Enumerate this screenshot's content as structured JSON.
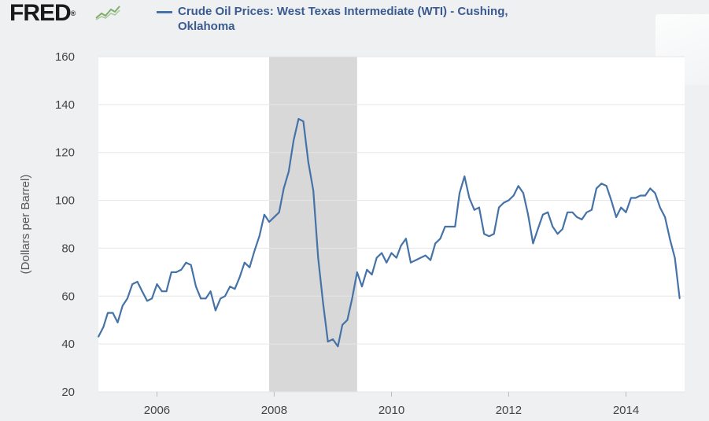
{
  "header": {
    "logo_text": "FRED",
    "logo_suffix": "®",
    "title_line1": "Crude Oil Prices: West Texas Intermediate (WTI) - Cushing,",
    "title_line2": "Oklahoma"
  },
  "colors": {
    "series": "#4572a7",
    "recession": "#d8d8d8",
    "plot_bg": "#ffffff",
    "grid": "#e6e6e6",
    "title": "#3a5a90"
  },
  "chart_data": {
    "type": "line",
    "title": "Crude Oil Prices: West Texas Intermediate (WTI) - Cushing, Oklahoma",
    "xlabel": "",
    "ylabel": "(Dollars per Barrel)",
    "xlim": [
      "2005-01-01",
      "2015-01-01"
    ],
    "ylim": [
      20,
      160
    ],
    "x_ticks": [
      "2006",
      "2008",
      "2010",
      "2012",
      "2014"
    ],
    "y_ticks": [
      "20",
      "40",
      "60",
      "80",
      "100",
      "120",
      "140",
      "160"
    ],
    "grid": true,
    "recession_shading": [
      {
        "start": "2007-12-01",
        "end": "2009-06-01"
      }
    ],
    "series": [
      {
        "name": "Crude Oil Prices: West Texas Intermediate (WTI) - Cushing, Oklahoma",
        "x": [
          "2005-01-01",
          "2005-02-01",
          "2005-03-01",
          "2005-04-01",
          "2005-05-01",
          "2005-06-01",
          "2005-07-01",
          "2005-08-01",
          "2005-09-01",
          "2005-10-01",
          "2005-11-01",
          "2005-12-01",
          "2006-01-01",
          "2006-02-01",
          "2006-03-01",
          "2006-04-01",
          "2006-05-01",
          "2006-06-01",
          "2006-07-01",
          "2006-08-01",
          "2006-09-01",
          "2006-10-01",
          "2006-11-01",
          "2006-12-01",
          "2007-01-01",
          "2007-02-01",
          "2007-03-01",
          "2007-04-01",
          "2007-05-01",
          "2007-06-01",
          "2007-07-01",
          "2007-08-01",
          "2007-09-01",
          "2007-10-01",
          "2007-11-01",
          "2007-12-01",
          "2008-01-01",
          "2008-02-01",
          "2008-03-01",
          "2008-04-01",
          "2008-05-01",
          "2008-06-01",
          "2008-07-01",
          "2008-08-01",
          "2008-09-01",
          "2008-10-01",
          "2008-11-01",
          "2008-12-01",
          "2009-01-01",
          "2009-02-01",
          "2009-03-01",
          "2009-04-01",
          "2009-05-01",
          "2009-06-01",
          "2009-07-01",
          "2009-08-01",
          "2009-09-01",
          "2009-10-01",
          "2009-11-01",
          "2009-12-01",
          "2010-01-01",
          "2010-02-01",
          "2010-03-01",
          "2010-04-01",
          "2010-05-01",
          "2010-06-01",
          "2010-07-01",
          "2010-08-01",
          "2010-09-01",
          "2010-10-01",
          "2010-11-01",
          "2010-12-01",
          "2011-01-01",
          "2011-02-01",
          "2011-03-01",
          "2011-04-01",
          "2011-05-01",
          "2011-06-01",
          "2011-07-01",
          "2011-08-01",
          "2011-09-01",
          "2011-10-01",
          "2011-11-01",
          "2011-12-01",
          "2012-01-01",
          "2012-02-01",
          "2012-03-01",
          "2012-04-01",
          "2012-05-01",
          "2012-06-01",
          "2012-07-01",
          "2012-08-01",
          "2012-09-01",
          "2012-10-01",
          "2012-11-01",
          "2012-12-01",
          "2013-01-01",
          "2013-02-01",
          "2013-03-01",
          "2013-04-01",
          "2013-05-01",
          "2013-06-01",
          "2013-07-01",
          "2013-08-01",
          "2013-09-01",
          "2013-10-01",
          "2013-11-01",
          "2013-12-01",
          "2014-01-01",
          "2014-02-01",
          "2014-03-01",
          "2014-04-01",
          "2014-05-01",
          "2014-06-01",
          "2014-07-01",
          "2014-08-01",
          "2014-09-01",
          "2014-10-01",
          "2014-11-01",
          "2014-12-01"
        ],
        "values": [
          43,
          47,
          53,
          53,
          49,
          56,
          59,
          65,
          66,
          62,
          58,
          59,
          65,
          62,
          62,
          70,
          70,
          71,
          74,
          73,
          64,
          59,
          59,
          62,
          54,
          59,
          60,
          64,
          63,
          68,
          74,
          72,
          79,
          85,
          94,
          91,
          93,
          95,
          105,
          112,
          125,
          134,
          133,
          116,
          104,
          76,
          57,
          41,
          42,
          39,
          48,
          50,
          59,
          70,
          64,
          71,
          69,
          76,
          78,
          74,
          78,
          76,
          81,
          84,
          74,
          75,
          76,
          77,
          75,
          82,
          84,
          89,
          89,
          89,
          103,
          110,
          101,
          96,
          97,
          86,
          85,
          86,
          97,
          99,
          100,
          102,
          106,
          103,
          94,
          82,
          88,
          94,
          95,
          89,
          86,
          88,
          95,
          95,
          93,
          92,
          95,
          96,
          105,
          107,
          106,
          100,
          93,
          97,
          95,
          101,
          101,
          102,
          102,
          105,
          103,
          97,
          93,
          84,
          76,
          59
        ]
      }
    ]
  }
}
